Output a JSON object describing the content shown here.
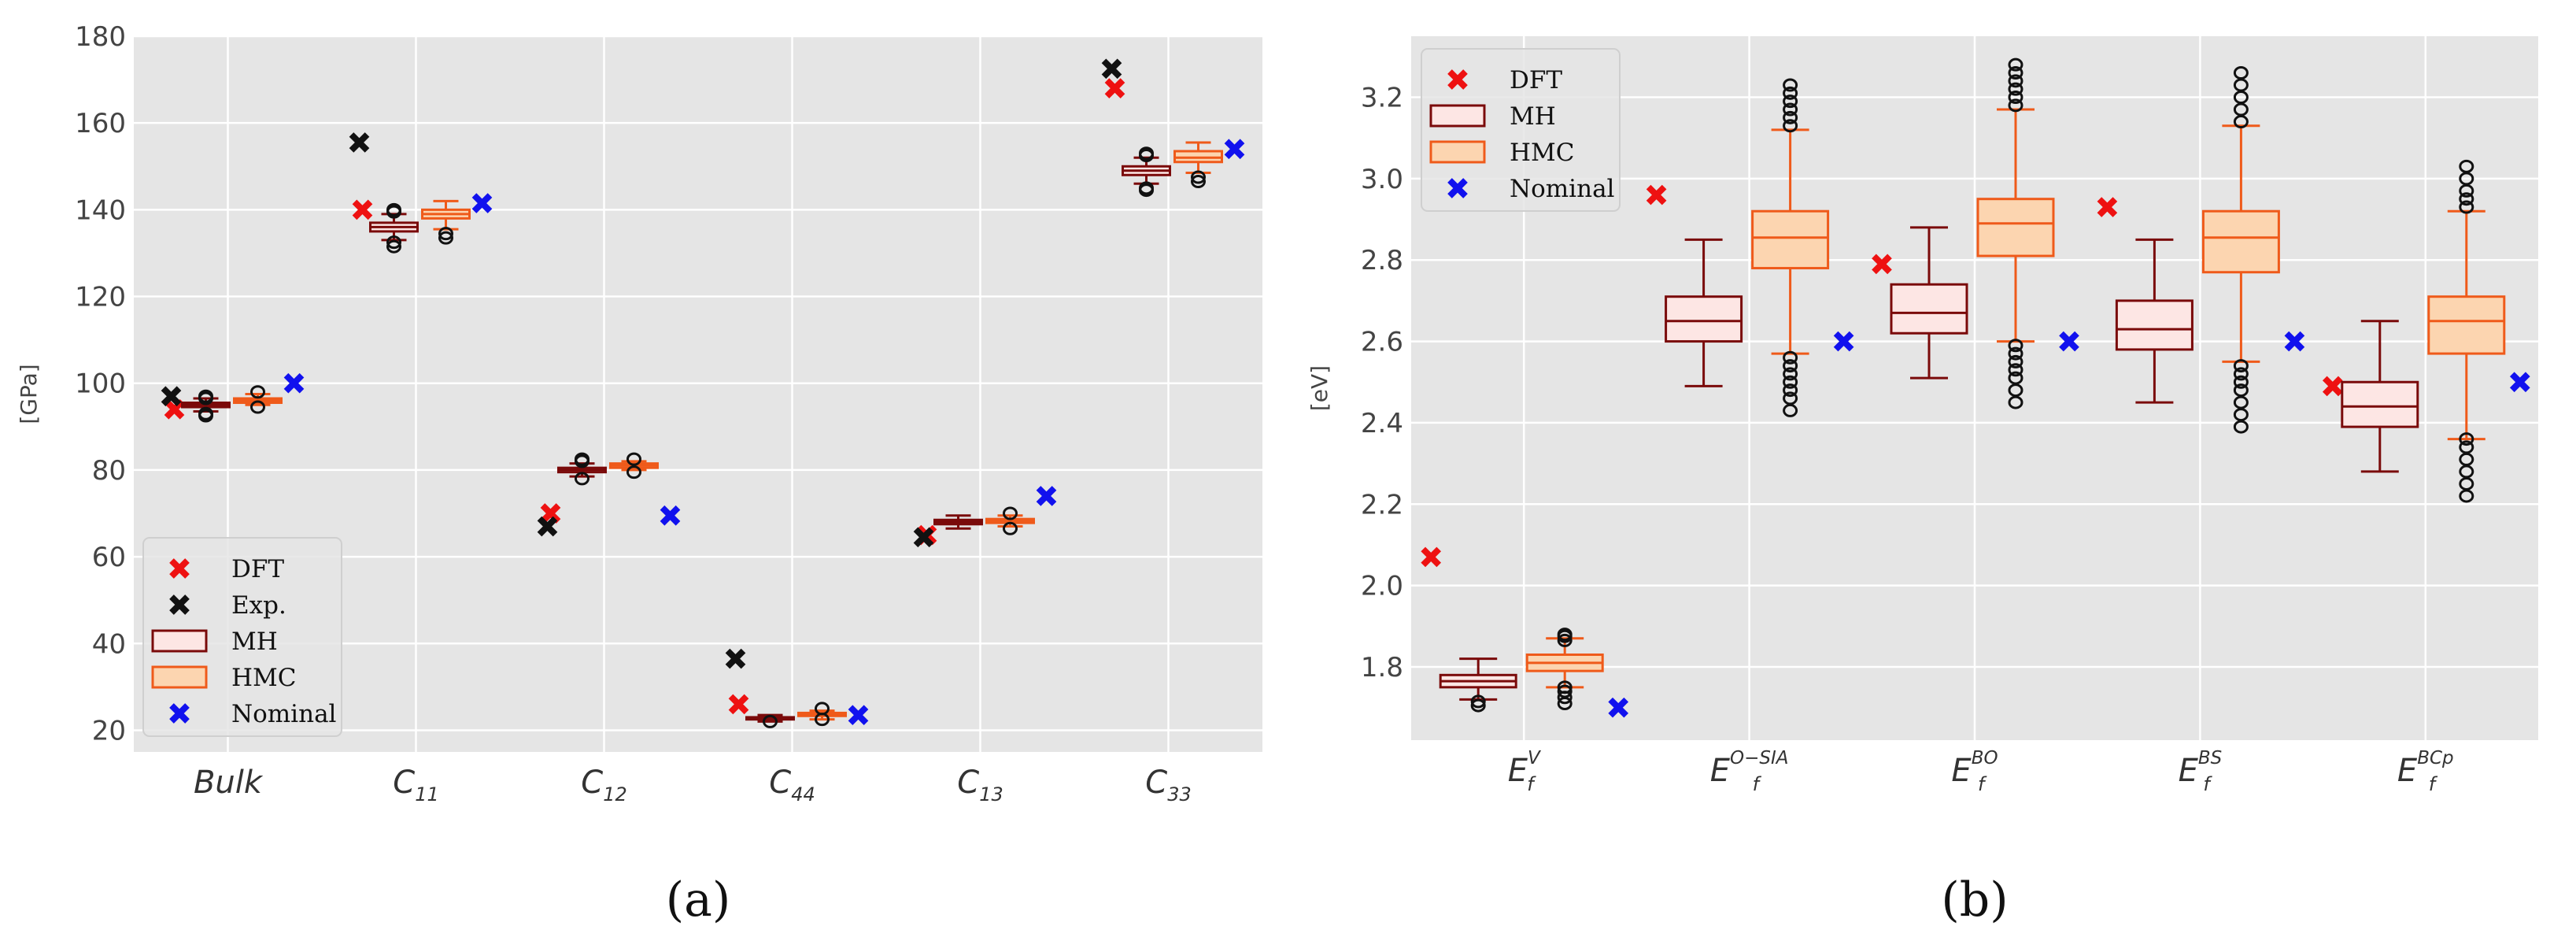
{
  "colors": {
    "bg": "#e5e5e5",
    "grid": "#ffffff",
    "dft": "#ee1111",
    "exp": "#111111",
    "nominal": "#1111ee",
    "mh_edge": "#7a0a0a",
    "mh_fill": "#fde6e4",
    "hmc_edge": "#ef5a1a",
    "hmc_fill": "#fcd5b0"
  },
  "chart_data": [
    {
      "type": "box",
      "panel_label": "(a)",
      "ylabel": "[GPa]",
      "ylim": [
        15,
        180
      ],
      "yticks": [
        20,
        40,
        60,
        80,
        100,
        120,
        140,
        160,
        180
      ],
      "categories": [
        {
          "base": "Bulk",
          "sub": "",
          "sup": ""
        },
        {
          "base": "C",
          "sub": "11",
          "sup": ""
        },
        {
          "base": "C",
          "sub": "12",
          "sup": ""
        },
        {
          "base": "C",
          "sub": "44",
          "sup": ""
        },
        {
          "base": "C",
          "sub": "13",
          "sup": ""
        },
        {
          "base": "C",
          "sub": "33",
          "sup": ""
        }
      ],
      "legend": [
        "DFT",
        "Exp.",
        "MH",
        "HMC",
        "Nominal"
      ],
      "legend_loc": "lower-left",
      "dft": [
        94,
        140,
        70,
        26,
        65,
        168
      ],
      "exp": [
        97,
        155.5,
        67,
        36.5,
        64.5,
        172.5
      ],
      "nominal": [
        100,
        141.5,
        69.5,
        23.5,
        74,
        154
      ],
      "mh": [
        {
          "whislo": 93.5,
          "q1": 94.5,
          "med": 95,
          "q3": 95.5,
          "whishi": 96.5,
          "fliers": [
            92.5,
            93,
            96.5,
            97
          ]
        },
        {
          "whislo": 133,
          "q1": 135,
          "med": 136,
          "q3": 137,
          "whishi": 139,
          "fliers": [
            131.5,
            132.5,
            139.5,
            140
          ]
        },
        {
          "whislo": 78.5,
          "q1": 79.5,
          "med": 80,
          "q3": 80.5,
          "whishi": 81.5,
          "fliers": [
            78,
            82,
            82.5
          ]
        },
        {
          "whislo": 22,
          "q1": 22.5,
          "med": 22.8,
          "q3": 23,
          "whishi": 23.5,
          "fliers": [
            22
          ]
        },
        {
          "whislo": 66.5,
          "q1": 67.5,
          "med": 68,
          "q3": 68.5,
          "whishi": 69.5,
          "fliers": []
        },
        {
          "whislo": 146,
          "q1": 148,
          "med": 149,
          "q3": 150,
          "whishi": 152,
          "fliers": [
            144.5,
            145,
            152.5,
            153
          ]
        }
      ],
      "hmc": [
        {
          "whislo": 95,
          "q1": 95.5,
          "med": 96,
          "q3": 96.5,
          "whishi": 97.5,
          "fliers": [
            94.5,
            98
          ]
        },
        {
          "whislo": 135.5,
          "q1": 138,
          "med": 139,
          "q3": 140,
          "whishi": 142,
          "fliers": [
            133.5,
            134.5
          ]
        },
        {
          "whislo": 80,
          "q1": 80.5,
          "med": 81,
          "q3": 81.5,
          "whishi": 82,
          "fliers": [
            79.5,
            82.5
          ]
        },
        {
          "whislo": 22.5,
          "q1": 23.3,
          "med": 23.7,
          "q3": 24,
          "whishi": 24.5,
          "fliers": [
            22.5,
            25
          ]
        },
        {
          "whislo": 67,
          "q1": 67.8,
          "med": 68.2,
          "q3": 68.7,
          "whishi": 69.5,
          "fliers": [
            66.5,
            70
          ]
        },
        {
          "whislo": 148.5,
          "q1": 151,
          "med": 152,
          "q3": 153.5,
          "whishi": 155.5,
          "fliers": [
            146.5,
            147.5
          ]
        }
      ]
    },
    {
      "type": "box",
      "panel_label": "(b)",
      "ylabel": "[eV]",
      "ylim": [
        1.62,
        3.35
      ],
      "yticks": [
        1.8,
        2.0,
        2.2,
        2.4,
        2.6,
        2.8,
        3.0,
        3.2
      ],
      "ytick_labels": [
        "1.8",
        "2.0",
        "2.2",
        "2.4",
        "2.6",
        "2.8",
        "3.0",
        "3.2"
      ],
      "categories": [
        {
          "base": "E",
          "sub": "f",
          "sup": "V"
        },
        {
          "base": "E",
          "sub": "f",
          "sup": "O−SIA"
        },
        {
          "base": "E",
          "sub": "f",
          "sup": "BO"
        },
        {
          "base": "E",
          "sub": "f",
          "sup": "BS"
        },
        {
          "base": "E",
          "sub": "f",
          "sup": "BCp"
        }
      ],
      "legend": [
        "DFT",
        "MH",
        "HMC",
        "Nominal"
      ],
      "legend_loc": "upper-left",
      "dft": [
        2.07,
        2.96,
        2.79,
        2.93,
        2.49
      ],
      "nominal": [
        1.7,
        2.6,
        2.6,
        2.6,
        2.5
      ],
      "mh": [
        {
          "whislo": 1.72,
          "q1": 1.75,
          "med": 1.765,
          "q3": 1.78,
          "whishi": 1.82,
          "fliers": [
            1.705,
            1.715
          ]
        },
        {
          "whislo": 2.49,
          "q1": 2.6,
          "med": 2.65,
          "q3": 2.71,
          "whishi": 2.85,
          "fliers": []
        },
        {
          "whislo": 2.51,
          "q1": 2.62,
          "med": 2.67,
          "q3": 2.74,
          "whishi": 2.88,
          "fliers": []
        },
        {
          "whislo": 2.45,
          "q1": 2.58,
          "med": 2.63,
          "q3": 2.7,
          "whishi": 2.85,
          "fliers": []
        },
        {
          "whislo": 2.28,
          "q1": 2.39,
          "med": 2.44,
          "q3": 2.5,
          "whishi": 2.65,
          "fliers": []
        }
      ],
      "hmc": [
        {
          "whislo": 1.75,
          "q1": 1.79,
          "med": 1.81,
          "q3": 1.83,
          "whishi": 1.87,
          "fliers": [
            1.71,
            1.725,
            1.74,
            1.75,
            1.865,
            1.875,
            1.88
          ]
        },
        {
          "whislo": 2.57,
          "q1": 2.78,
          "med": 2.855,
          "q3": 2.92,
          "whishi": 3.12,
          "fliers": [
            2.43,
            2.46,
            2.48,
            2.5,
            2.52,
            2.54,
            2.56,
            3.13,
            3.15,
            3.17,
            3.19,
            3.21,
            3.23
          ]
        },
        {
          "whislo": 2.6,
          "q1": 2.81,
          "med": 2.89,
          "q3": 2.95,
          "whishi": 3.17,
          "fliers": [
            2.45,
            2.48,
            2.51,
            2.53,
            2.55,
            2.57,
            2.59,
            3.18,
            3.2,
            3.22,
            3.24,
            3.26,
            3.28
          ]
        },
        {
          "whislo": 2.55,
          "q1": 2.77,
          "med": 2.855,
          "q3": 2.92,
          "whishi": 3.13,
          "fliers": [
            2.39,
            2.42,
            2.45,
            2.48,
            2.5,
            2.52,
            2.54,
            3.14,
            3.17,
            3.2,
            3.23,
            3.26
          ]
        },
        {
          "whislo": 2.36,
          "q1": 2.57,
          "med": 2.65,
          "q3": 2.71,
          "whishi": 2.92,
          "fliers": [
            2.22,
            2.25,
            2.28,
            2.31,
            2.34,
            2.36,
            2.93,
            2.95,
            2.97,
            3.0,
            3.03
          ]
        }
      ]
    }
  ]
}
